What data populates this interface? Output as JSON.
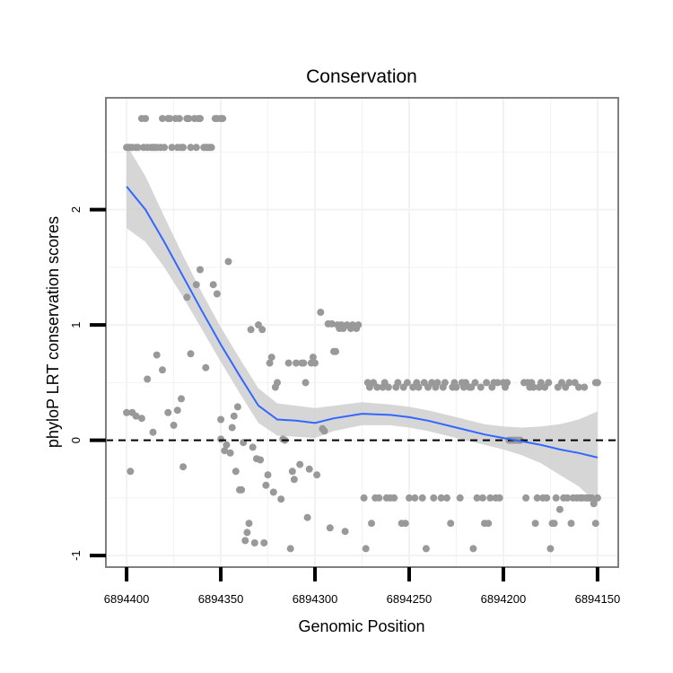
{
  "chart_data": {
    "type": "scatter",
    "title": "Conservation",
    "xlabel": "Genomic Position",
    "ylabel": "phyloP LRT conservation scores",
    "x_reversed": true,
    "xlim": [
      6894411,
      6894139
    ],
    "ylim": [
      -1.1,
      2.97
    ],
    "x_ticks": [
      6894400,
      6894350,
      6894300,
      6894250,
      6894200,
      6894150
    ],
    "x_tick_labels": [
      "6894400",
      "6894350",
      "6894300",
      "6894250",
      "6894200",
      "6894150"
    ],
    "y_ticks": [
      -1,
      0,
      1,
      2
    ],
    "y_tick_labels": [
      "-1",
      "0",
      "1",
      "2"
    ],
    "reference_line": {
      "y": 0,
      "style": "dashed"
    },
    "colors": {
      "points": "#999999",
      "smooth": "#3366ff",
      "ribbon": "#cccccc",
      "panel_border": "#7f7f7f",
      "grid": "#f2f2f2"
    },
    "points": [
      {
        "x": 6894400,
        "y": 2.54
      },
      {
        "x": 6894399,
        "y": 2.54
      },
      {
        "x": 6894398,
        "y": 2.54
      },
      {
        "x": 6894397,
        "y": 2.54
      },
      {
        "x": 6894395,
        "y": 2.54
      },
      {
        "x": 6894394,
        "y": 2.54
      },
      {
        "x": 6894392,
        "y": 2.79
      },
      {
        "x": 6894391,
        "y": 2.54
      },
      {
        "x": 6894390,
        "y": 2.79
      },
      {
        "x": 6894389,
        "y": 2.54
      },
      {
        "x": 6894387,
        "y": 2.54
      },
      {
        "x": 6894386,
        "y": 2.54
      },
      {
        "x": 6894385,
        "y": 2.54
      },
      {
        "x": 6894384,
        "y": 2.54
      },
      {
        "x": 6894382,
        "y": 2.54
      },
      {
        "x": 6894381,
        "y": 2.79
      },
      {
        "x": 6894380,
        "y": 2.54
      },
      {
        "x": 6894378,
        "y": 2.79
      },
      {
        "x": 6894377,
        "y": 2.79
      },
      {
        "x": 6894376,
        "y": 2.54
      },
      {
        "x": 6894374,
        "y": 2.79
      },
      {
        "x": 6894373,
        "y": 2.54
      },
      {
        "x": 6894372,
        "y": 2.79
      },
      {
        "x": 6894371,
        "y": 2.54
      },
      {
        "x": 6894370,
        "y": 2.54
      },
      {
        "x": 6894368,
        "y": 2.79
      },
      {
        "x": 6894367,
        "y": 2.79
      },
      {
        "x": 6894366,
        "y": 2.54
      },
      {
        "x": 6894364,
        "y": 2.79
      },
      {
        "x": 6894363,
        "y": 2.54
      },
      {
        "x": 6894362,
        "y": 2.79
      },
      {
        "x": 6894361,
        "y": 2.79
      },
      {
        "x": 6894359,
        "y": 2.54
      },
      {
        "x": 6894358,
        "y": 2.54
      },
      {
        "x": 6894357,
        "y": 2.54
      },
      {
        "x": 6894356,
        "y": 2.54
      },
      {
        "x": 6894355,
        "y": 2.54
      },
      {
        "x": 6894353,
        "y": 2.79
      },
      {
        "x": 6894352,
        "y": 2.79
      },
      {
        "x": 6894350,
        "y": 2.79
      },
      {
        "x": 6894349,
        "y": 2.79
      },
      {
        "x": 6894400,
        "y": 0.24
      },
      {
        "x": 6894398,
        "y": -0.27
      },
      {
        "x": 6894397,
        "y": 0.24
      },
      {
        "x": 6894395,
        "y": 0.21
      },
      {
        "x": 6894392,
        "y": 0.19
      },
      {
        "x": 6894389,
        "y": 0.53
      },
      {
        "x": 6894386,
        "y": 0.07
      },
      {
        "x": 6894384,
        "y": 0.74
      },
      {
        "x": 6894381,
        "y": 0.61
      },
      {
        "x": 6894378,
        "y": 0.24
      },
      {
        "x": 6894375,
        "y": 0.13
      },
      {
        "x": 6894373,
        "y": 0.26
      },
      {
        "x": 6894371,
        "y": 0.36
      },
      {
        "x": 6894370,
        "y": -0.23
      },
      {
        "x": 6894368,
        "y": 1.24
      },
      {
        "x": 6894366,
        "y": 0.75
      },
      {
        "x": 6894363,
        "y": 1.35
      },
      {
        "x": 6894361,
        "y": 1.48
      },
      {
        "x": 6894358,
        "y": 0.63
      },
      {
        "x": 6894354,
        "y": 1.35
      },
      {
        "x": 6894352,
        "y": 1.27
      },
      {
        "x": 6894350,
        "y": 0.18
      },
      {
        "x": 6894350,
        "y": 0.01
      },
      {
        "x": 6894348,
        "y": -0.09
      },
      {
        "x": 6894347,
        "y": -0.04
      },
      {
        "x": 6894346,
        "y": 1.55
      },
      {
        "x": 6894345,
        "y": -0.11
      },
      {
        "x": 6894344,
        "y": 0.11
      },
      {
        "x": 6894343,
        "y": 0.21
      },
      {
        "x": 6894342,
        "y": -0.27
      },
      {
        "x": 6894341,
        "y": 0.29
      },
      {
        "x": 6894340,
        "y": -0.43
      },
      {
        "x": 6894339,
        "y": -0.43
      },
      {
        "x": 6894338,
        "y": -0.02
      },
      {
        "x": 6894337,
        "y": -0.87
      },
      {
        "x": 6894336,
        "y": -0.8
      },
      {
        "x": 6894335,
        "y": -0.72
      },
      {
        "x": 6894334,
        "y": 0.96
      },
      {
        "x": 6894333,
        "y": -0.06
      },
      {
        "x": 6894332,
        "y": -0.89
      },
      {
        "x": 6894331,
        "y": -0.16
      },
      {
        "x": 6894330,
        "y": 1.0
      },
      {
        "x": 6894329,
        "y": -0.17
      },
      {
        "x": 6894328,
        "y": 0.96
      },
      {
        "x": 6894327,
        "y": -0.89
      },
      {
        "x": 6894326,
        "y": -0.39
      },
      {
        "x": 6894325,
        "y": -0.3
      },
      {
        "x": 6894324,
        "y": 0.67
      },
      {
        "x": 6894323,
        "y": 0.72
      },
      {
        "x": 6894322,
        "y": -0.45
      },
      {
        "x": 6894321,
        "y": 0.46
      },
      {
        "x": 6894320,
        "y": 0.5
      },
      {
        "x": 6894318,
        "y": -0.51
      },
      {
        "x": 6894317,
        "y": 0.01
      },
      {
        "x": 6894316,
        "y": 0.0
      },
      {
        "x": 6894314,
        "y": 0.67
      },
      {
        "x": 6894313,
        "y": -0.94
      },
      {
        "x": 6894312,
        "y": -0.27
      },
      {
        "x": 6894311,
        "y": -0.34
      },
      {
        "x": 6894310,
        "y": 0.67
      },
      {
        "x": 6894308,
        "y": -0.21
      },
      {
        "x": 6894307,
        "y": 0.67
      },
      {
        "x": 6894306,
        "y": 0.67
      },
      {
        "x": 6894305,
        "y": 0.5
      },
      {
        "x": 6894304,
        "y": -0.67
      },
      {
        "x": 6894303,
        "y": -0.25
      },
      {
        "x": 6894302,
        "y": 0.67
      },
      {
        "x": 6894301,
        "y": 0.72
      },
      {
        "x": 6894300,
        "y": 0.67
      },
      {
        "x": 6894299,
        "y": -0.3
      },
      {
        "x": 6894297,
        "y": 1.11
      },
      {
        "x": 6894296,
        "y": 0.1
      },
      {
        "x": 6894295,
        "y": 0.08
      },
      {
        "x": 6894293,
        "y": 1.01
      },
      {
        "x": 6894292,
        "y": -0.76
      },
      {
        "x": 6894291,
        "y": 1.01
      },
      {
        "x": 6894290,
        "y": 0.77
      },
      {
        "x": 6894289,
        "y": 0.77
      },
      {
        "x": 6894288,
        "y": 1.0
      },
      {
        "x": 6894287,
        "y": 0.97
      },
      {
        "x": 6894286,
        "y": 1.0
      },
      {
        "x": 6894285,
        "y": 0.97
      },
      {
        "x": 6894284,
        "y": -0.79
      },
      {
        "x": 6894283,
        "y": 1.0
      },
      {
        "x": 6894281,
        "y": 0.97
      },
      {
        "x": 6894280,
        "y": 1.0
      },
      {
        "x": 6894278,
        "y": 0.97
      },
      {
        "x": 6894277,
        "y": 1.0
      },
      {
        "x": 6894274,
        "y": -0.5
      },
      {
        "x": 6894273,
        "y": -0.94
      },
      {
        "x": 6894272,
        "y": 0.5
      },
      {
        "x": 6894271,
        "y": 0.46
      },
      {
        "x": 6894270,
        "y": -0.72
      },
      {
        "x": 6894269,
        "y": 0.5
      },
      {
        "x": 6894268,
        "y": -0.5
      },
      {
        "x": 6894267,
        "y": 0.46
      },
      {
        "x": 6894266,
        "y": -0.5
      },
      {
        "x": 6894264,
        "y": 0.46
      },
      {
        "x": 6894263,
        "y": 0.5
      },
      {
        "x": 6894262,
        "y": -0.5
      },
      {
        "x": 6894261,
        "y": 0.46
      },
      {
        "x": 6894260,
        "y": -0.5
      },
      {
        "x": 6894258,
        "y": -0.5
      },
      {
        "x": 6894257,
        "y": 0.46
      },
      {
        "x": 6894256,
        "y": 0.5
      },
      {
        "x": 6894254,
        "y": -0.72
      },
      {
        "x": 6894253,
        "y": 0.46
      },
      {
        "x": 6894252,
        "y": -0.72
      },
      {
        "x": 6894251,
        "y": 0.5
      },
      {
        "x": 6894250,
        "y": -0.5
      },
      {
        "x": 6894248,
        "y": 0.46
      },
      {
        "x": 6894247,
        "y": -0.5
      },
      {
        "x": 6894246,
        "y": 0.5
      },
      {
        "x": 6894245,
        "y": 0.46
      },
      {
        "x": 6894243,
        "y": -0.5
      },
      {
        "x": 6894242,
        "y": 0.5
      },
      {
        "x": 6894241,
        "y": -0.94
      },
      {
        "x": 6894240,
        "y": 0.46
      },
      {
        "x": 6894238,
        "y": 0.5
      },
      {
        "x": 6894237,
        "y": -0.5
      },
      {
        "x": 6894236,
        "y": 0.46
      },
      {
        "x": 6894235,
        "y": 0.5
      },
      {
        "x": 6894233,
        "y": -0.5
      },
      {
        "x": 6894232,
        "y": 0.46
      },
      {
        "x": 6894231,
        "y": 0.5
      },
      {
        "x": 6894230,
        "y": -0.5
      },
      {
        "x": 6894228,
        "y": -0.72
      },
      {
        "x": 6894227,
        "y": 0.46
      },
      {
        "x": 6894226,
        "y": 0.5
      },
      {
        "x": 6894225,
        "y": 0.46
      },
      {
        "x": 6894223,
        "y": -0.5
      },
      {
        "x": 6894222,
        "y": 0.5
      },
      {
        "x": 6894221,
        "y": 0.46
      },
      {
        "x": 6894220,
        "y": 0.5
      },
      {
        "x": 6894218,
        "y": 0.46
      },
      {
        "x": 6894217,
        "y": 0.46
      },
      {
        "x": 6894216,
        "y": -0.94
      },
      {
        "x": 6894215,
        "y": 0.5
      },
      {
        "x": 6894214,
        "y": -0.5
      },
      {
        "x": 6894212,
        "y": 0.46
      },
      {
        "x": 6894211,
        "y": -0.5
      },
      {
        "x": 6894210,
        "y": -0.72
      },
      {
        "x": 6894209,
        "y": 0.5
      },
      {
        "x": 6894208,
        "y": -0.72
      },
      {
        "x": 6894207,
        "y": -0.5
      },
      {
        "x": 6894206,
        "y": 0.46
      },
      {
        "x": 6894205,
        "y": 0.5
      },
      {
        "x": 6894204,
        "y": -0.5
      },
      {
        "x": 6894203,
        "y": 0.5
      },
      {
        "x": 6894202,
        "y": -0.5
      },
      {
        "x": 6894200,
        "y": 0.5
      },
      {
        "x": 6894199,
        "y": 0.46
      },
      {
        "x": 6894198,
        "y": 0.5
      },
      {
        "x": 6894197,
        "y": 0.0
      },
      {
        "x": 6894196,
        "y": 0.0
      },
      {
        "x": 6894195,
        "y": 0.0
      },
      {
        "x": 6894194,
        "y": 0.0
      },
      {
        "x": 6894193,
        "y": 0.0
      },
      {
        "x": 6894192,
        "y": 0.0
      },
      {
        "x": 6894191,
        "y": 0.0
      },
      {
        "x": 6894189,
        "y": 0.5
      },
      {
        "x": 6894188,
        "y": -0.5
      },
      {
        "x": 6894187,
        "y": 0.5
      },
      {
        "x": 6894186,
        "y": 0.46
      },
      {
        "x": 6894185,
        "y": 0.5
      },
      {
        "x": 6894184,
        "y": 0.46
      },
      {
        "x": 6894183,
        "y": -0.72
      },
      {
        "x": 6894182,
        "y": -0.5
      },
      {
        "x": 6894181,
        "y": 0.46
      },
      {
        "x": 6894180,
        "y": 0.5
      },
      {
        "x": 6894179,
        "y": -0.5
      },
      {
        "x": 6894178,
        "y": 0.46
      },
      {
        "x": 6894177,
        "y": -0.5
      },
      {
        "x": 6894176,
        "y": 0.5
      },
      {
        "x": 6894175,
        "y": -0.94
      },
      {
        "x": 6894174,
        "y": -0.72
      },
      {
        "x": 6894173,
        "y": -0.72
      },
      {
        "x": 6894172,
        "y": -0.5
      },
      {
        "x": 6894171,
        "y": 0.46
      },
      {
        "x": 6894170,
        "y": -0.6
      },
      {
        "x": 6894169,
        "y": 0.5
      },
      {
        "x": 6894168,
        "y": -0.5
      },
      {
        "x": 6894167,
        "y": 0.46
      },
      {
        "x": 6894166,
        "y": -0.5
      },
      {
        "x": 6894165,
        "y": 0.5
      },
      {
        "x": 6894164,
        "y": -0.72
      },
      {
        "x": 6894163,
        "y": -0.5
      },
      {
        "x": 6894162,
        "y": 0.5
      },
      {
        "x": 6894161,
        "y": -0.5
      },
      {
        "x": 6894160,
        "y": 0.46
      },
      {
        "x": 6894159,
        "y": -0.5
      },
      {
        "x": 6894158,
        "y": -0.5
      },
      {
        "x": 6894157,
        "y": 0.46
      },
      {
        "x": 6894156,
        "y": -0.5
      },
      {
        "x": 6894155,
        "y": -0.5
      },
      {
        "x": 6894154,
        "y": -0.5
      },
      {
        "x": 6894153,
        "y": -0.5
      },
      {
        "x": 6894152,
        "y": -0.55
      },
      {
        "x": 6894151,
        "y": -0.72
      },
      {
        "x": 6894151,
        "y": 0.5
      },
      {
        "x": 6894150,
        "y": 0.5
      },
      {
        "x": 6894150,
        "y": -0.5
      }
    ],
    "smooth": [
      {
        "x": 6894400,
        "y": 2.2,
        "lo": 1.84,
        "hi": 2.56
      },
      {
        "x": 6894390,
        "y": 2.0,
        "lo": 1.72,
        "hi": 2.29
      },
      {
        "x": 6894380,
        "y": 1.72,
        "lo": 1.5,
        "hi": 1.94
      },
      {
        "x": 6894370,
        "y": 1.42,
        "lo": 1.24,
        "hi": 1.6
      },
      {
        "x": 6894360,
        "y": 1.12,
        "lo": 0.96,
        "hi": 1.28
      },
      {
        "x": 6894350,
        "y": 0.83,
        "lo": 0.68,
        "hi": 0.98
      },
      {
        "x": 6894340,
        "y": 0.56,
        "lo": 0.41,
        "hi": 0.71
      },
      {
        "x": 6894330,
        "y": 0.3,
        "lo": 0.15,
        "hi": 0.45
      },
      {
        "x": 6894320,
        "y": 0.18,
        "lo": 0.04,
        "hi": 0.32
      },
      {
        "x": 6894310,
        "y": 0.17,
        "lo": 0.03,
        "hi": 0.3
      },
      {
        "x": 6894300,
        "y": 0.15,
        "lo": 0.02,
        "hi": 0.28
      },
      {
        "x": 6894290,
        "y": 0.19,
        "lo": 0.08,
        "hi": 0.3
      },
      {
        "x": 6894275,
        "y": 0.23,
        "lo": 0.13,
        "hi": 0.33
      },
      {
        "x": 6894260,
        "y": 0.22,
        "lo": 0.13,
        "hi": 0.31
      },
      {
        "x": 6894250,
        "y": 0.2,
        "lo": 0.11,
        "hi": 0.29
      },
      {
        "x": 6894240,
        "y": 0.17,
        "lo": 0.08,
        "hi": 0.26
      },
      {
        "x": 6894225,
        "y": 0.11,
        "lo": 0.02,
        "hi": 0.2
      },
      {
        "x": 6894210,
        "y": 0.05,
        "lo": -0.04,
        "hi": 0.14
      },
      {
        "x": 6894200,
        "y": 0.02,
        "lo": -0.08,
        "hi": 0.12
      },
      {
        "x": 6894190,
        "y": -0.01,
        "lo": -0.13,
        "hi": 0.11
      },
      {
        "x": 6894180,
        "y": -0.04,
        "lo": -0.2,
        "hi": 0.12
      },
      {
        "x": 6894170,
        "y": -0.08,
        "lo": -0.3,
        "hi": 0.14
      },
      {
        "x": 6894160,
        "y": -0.11,
        "lo": -0.4,
        "hi": 0.18
      },
      {
        "x": 6894150,
        "y": -0.15,
        "lo": -0.55,
        "hi": 0.25
      }
    ]
  }
}
